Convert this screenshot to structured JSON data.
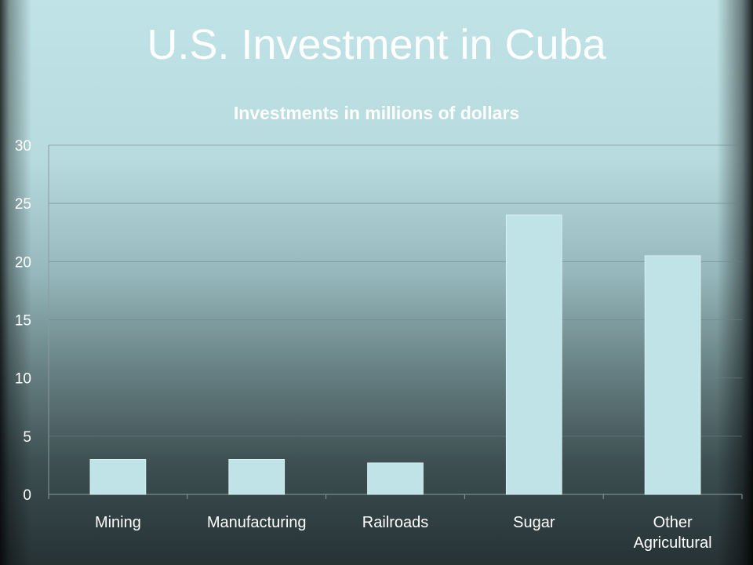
{
  "slide": {
    "title": "U.S. Investment in Cuba"
  },
  "chart_data": {
    "type": "bar",
    "title": "Investments in millions of dollars",
    "xlabel": "",
    "ylabel": "",
    "categories": [
      "Mining",
      "Manufacturing",
      "Railroads",
      "Sugar",
      "Other Agricultural"
    ],
    "values": [
      3,
      3,
      2.7,
      24,
      20.5
    ],
    "ylim": [
      0,
      30
    ],
    "yticks": [
      0,
      5,
      10,
      15,
      20,
      25,
      30
    ],
    "grid": true,
    "legend": "none",
    "bar_color": "#bfe3e6"
  }
}
